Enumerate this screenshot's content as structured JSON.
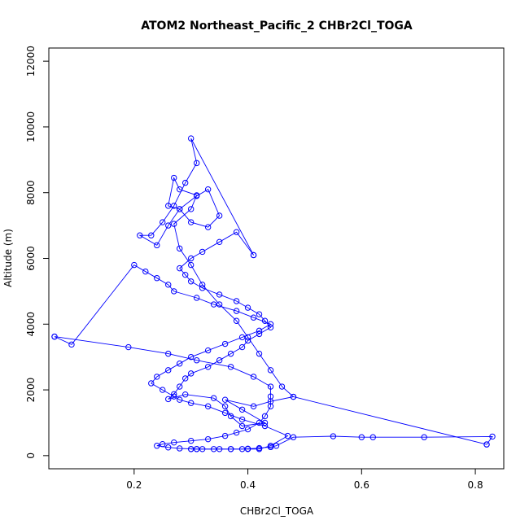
{
  "chart_data": {
    "type": "line",
    "title": "ATOM2 Northeast_Pacific_2 CHBr2Cl_TOGA",
    "xlabel": "CHBr2Cl_TOGA",
    "ylabel": "Altitude (m)",
    "xlim": [
      0.05,
      0.85
    ],
    "ylim": [
      -400,
      12400
    ],
    "x_ticks": [
      0.2,
      0.4,
      0.6,
      0.8
    ],
    "x_tick_labels": [
      "0.2",
      "0.4",
      "0.6",
      "0.8"
    ],
    "y_ticks": [
      0,
      2000,
      4000,
      6000,
      8000,
      10000,
      12000
    ],
    "y_tick_labels": [
      "0",
      "2000",
      "4000",
      "6000",
      "8000",
      "10000",
      "12000"
    ],
    "grid": false,
    "legend": "none",
    "markers": "open-circle",
    "line_color": "#0000ff",
    "series": [
      {
        "x": [
          0.3,
          0.31,
          0.3,
          0.32,
          0.35,
          0.37,
          0.4,
          0.42,
          0.44,
          0.47,
          0.43,
          0.39,
          0.36,
          0.33,
          0.3,
          0.28,
          0.27,
          0.25,
          0.23,
          0.24,
          0.26,
          0.28,
          0.3,
          0.33,
          0.36,
          0.39,
          0.42,
          0.44,
          0.41,
          0.38,
          0.34,
          0.31,
          0.27,
          0.26,
          0.24,
          0.22,
          0.2,
          0.09,
          0.06
        ],
        "y": [
          200,
          200,
          200,
          200,
          200,
          200,
          200,
          200,
          300,
          600,
          900,
          1100,
          1300,
          1500,
          1600,
          1700,
          1800,
          2000,
          2200,
          2400,
          2600,
          2800,
          3000,
          3200,
          3400,
          3600,
          3800,
          4000,
          4200,
          4400,
          4600,
          4800,
          5000,
          5200,
          5400,
          5600,
          5800,
          3380,
          3620
        ]
      },
      {
        "x": [
          0.06,
          0.19,
          0.26,
          0.31,
          0.37,
          0.41,
          0.44,
          0.44,
          0.44,
          0.43,
          0.42,
          0.4,
          0.38,
          0.36,
          0.33,
          0.3,
          0.27,
          0.25,
          0.24,
          0.26,
          0.28,
          0.31,
          0.34,
          0.37,
          0.39,
          0.4,
          0.42,
          0.44,
          0.45,
          0.48,
          0.55,
          0.6,
          0.62,
          0.71,
          0.83,
          0.82
        ],
        "y": [
          3620,
          3300,
          3100,
          2900,
          2700,
          2400,
          2100,
          1800,
          1500,
          1200,
          1000,
          800,
          700,
          600,
          500,
          450,
          400,
          350,
          300,
          250,
          220,
          200,
          200,
          200,
          200,
          210,
          230,
          260,
          300,
          560,
          590,
          560,
          560,
          560,
          580,
          340
        ]
      },
      {
        "x": [
          0.82,
          0.48,
          0.44,
          0.41,
          0.36,
          0.39,
          0.43,
          0.39,
          0.37,
          0.36,
          0.34,
          0.29,
          0.26,
          0.27,
          0.28,
          0.29,
          0.3,
          0.33,
          0.35,
          0.37,
          0.39,
          0.4,
          0.42,
          0.44,
          0.43,
          0.42,
          0.4,
          0.38,
          0.35,
          0.32,
          0.3,
          0.29,
          0.28,
          0.3,
          0.32,
          0.35,
          0.38,
          0.41
        ],
        "y": [
          340,
          1790,
          1650,
          1500,
          1700,
          1400,
          1000,
          900,
          1200,
          1500,
          1750,
          1860,
          1720,
          1870,
          2100,
          2350,
          2500,
          2700,
          2900,
          3100,
          3300,
          3500,
          3700,
          3900,
          4100,
          4300,
          4500,
          4700,
          4900,
          5100,
          5300,
          5500,
          5700,
          6000,
          6200,
          6500,
          6800,
          6100
        ]
      },
      {
        "x": [
          0.41,
          0.3,
          0.31,
          0.29,
          0.27,
          0.25,
          0.23,
          0.21,
          0.24,
          0.26,
          0.28,
          0.31,
          0.33,
          0.35,
          0.33,
          0.3,
          0.28,
          0.26,
          0.27,
          0.28,
          0.31,
          0.3,
          0.27,
          0.28,
          0.3,
          0.32,
          0.35,
          0.38,
          0.4,
          0.42,
          0.44,
          0.46,
          0.48
        ],
        "y": [
          6100,
          9650,
          8900,
          8300,
          7600,
          7100,
          6700,
          6700,
          6400,
          7000,
          7500,
          7900,
          8100,
          7300,
          6950,
          7100,
          7500,
          7600,
          8450,
          8100,
          7920,
          7500,
          7050,
          6300,
          5800,
          5200,
          4600,
          4100,
          3600,
          3100,
          2600,
          2100,
          1790
        ]
      }
    ]
  }
}
